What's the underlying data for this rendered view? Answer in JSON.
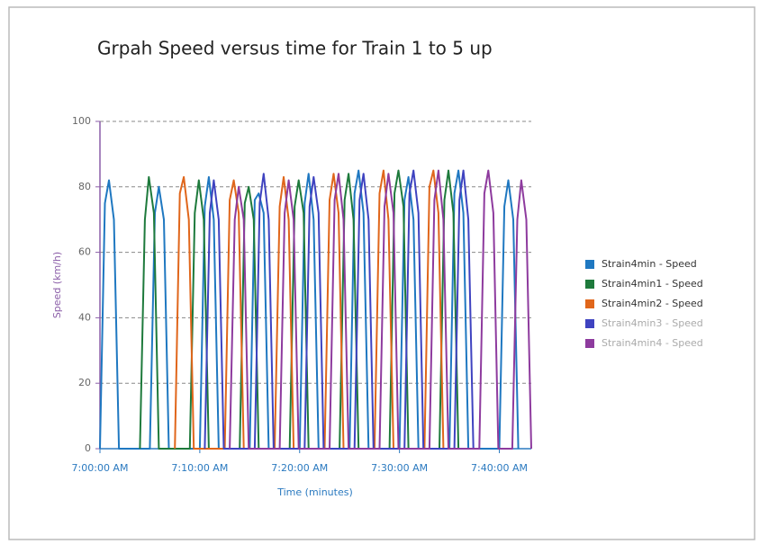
{
  "chart_data": {
    "type": "line",
    "title": "Grpah Speed versus time for Train 1 to 5 up",
    "x_label": "Time (minutes)",
    "y_label": "Speed (km/h)",
    "xlim": [
      0,
      43.2
    ],
    "xticks": [
      {
        "value": 0,
        "label": "7:00:00 AM"
      },
      {
        "value": 10,
        "label": "7:10:00 AM"
      },
      {
        "value": 20,
        "label": "7:20:00 AM"
      },
      {
        "value": 30,
        "label": "7:30:00 AM"
      },
      {
        "value": 40,
        "label": "7:40:00 AM"
      }
    ],
    "ylim": [
      0,
      100
    ],
    "yticks": [
      0,
      20,
      40,
      60,
      80,
      100
    ],
    "grid": true,
    "legend": "right",
    "series": [
      {
        "name": "Strain4min - Speed",
        "color": "#1f78c1",
        "x": [
          0,
          0.5,
          0.9,
          1.4,
          1.9,
          5,
          5.5,
          5.9,
          6.4,
          6.9,
          10,
          10.5,
          10.9,
          11.4,
          11.9,
          15,
          15.5,
          15.9,
          16.4,
          16.9,
          20,
          20.5,
          20.9,
          21.4,
          21.9,
          25,
          25.5,
          25.9,
          26.4,
          26.9,
          30,
          30.5,
          30.9,
          31.4,
          31.9,
          35,
          35.5,
          35.9,
          36.4,
          36.9,
          40,
          40.5,
          40.9,
          41.4,
          41.9
        ],
        "values": [
          0,
          75,
          82,
          70,
          0,
          0,
          72,
          80,
          70,
          0,
          0,
          74,
          83,
          70,
          0,
          0,
          76,
          78,
          72,
          0,
          0,
          75,
          84,
          70,
          0,
          0,
          78,
          85,
          72,
          0,
          0,
          76,
          83,
          70,
          0,
          0,
          78,
          85,
          72,
          0,
          0,
          74,
          82,
          70,
          0
        ]
      },
      {
        "name": "Strain4min1 - Speed",
        "color": "#1e7a3c",
        "x": [
          4,
          4.5,
          4.9,
          5.4,
          5.9,
          9,
          9.5,
          9.9,
          10.4,
          10.9,
          14,
          14.5,
          14.9,
          15.4,
          15.9,
          19,
          19.5,
          19.9,
          20.4,
          20.9,
          24,
          24.5,
          24.9,
          25.4,
          25.9,
          29,
          29.5,
          29.9,
          30.4,
          30.9,
          34,
          34.5,
          34.9,
          35.4,
          35.9
        ],
        "values": [
          0,
          70,
          83,
          72,
          0,
          0,
          72,
          82,
          70,
          0,
          0,
          75,
          80,
          70,
          0,
          0,
          74,
          82,
          72,
          0,
          0,
          76,
          84,
          70,
          0,
          0,
          78,
          85,
          74,
          0,
          0,
          76,
          85,
          72,
          0
        ]
      },
      {
        "name": "Strain4min2 - Speed",
        "color": "#e0661b",
        "x": [
          7.5,
          8,
          8.4,
          8.9,
          9.4,
          12.5,
          13,
          13.4,
          13.9,
          14.4,
          17.5,
          18,
          18.4,
          18.9,
          19.4,
          22.5,
          23,
          23.4,
          23.9,
          24.4,
          27.5,
          28,
          28.4,
          28.9,
          29.4,
          32.5,
          33,
          33.4,
          33.9,
          34.4
        ],
        "values": [
          0,
          78,
          83,
          70,
          0,
          0,
          76,
          82,
          72,
          0,
          0,
          74,
          83,
          70,
          0,
          0,
          76,
          84,
          72,
          0,
          0,
          78,
          85,
          70,
          0,
          0,
          80,
          85,
          72,
          0
        ]
      },
      {
        "name": "Strain4min3 - Speed",
        "color": "#3f43c0",
        "x": [
          10.5,
          11,
          11.4,
          11.9,
          12.4,
          15.5,
          16,
          16.4,
          16.9,
          17.4,
          20.5,
          21,
          21.4,
          21.9,
          22.4,
          25.5,
          26,
          26.4,
          26.9,
          27.4,
          30.5,
          31,
          31.4,
          31.9,
          32.4,
          35.5,
          36,
          36.4,
          36.9,
          37.4
        ],
        "values": [
          0,
          72,
          82,
          70,
          0,
          0,
          75,
          84,
          70,
          0,
          0,
          74,
          83,
          72,
          0,
          0,
          76,
          84,
          70,
          0,
          0,
          78,
          85,
          72,
          0,
          0,
          76,
          85,
          70,
          0
        ]
      },
      {
        "name": "Strain4min4 - Speed",
        "color": "#8e3b9e",
        "x": [
          13,
          13.5,
          13.9,
          14.4,
          14.9,
          18,
          18.5,
          18.9,
          19.4,
          19.9,
          23,
          23.5,
          23.9,
          24.4,
          24.9,
          28,
          28.5,
          28.9,
          29.4,
          29.9,
          33,
          33.5,
          33.9,
          34.4,
          34.9,
          38,
          38.5,
          38.9,
          39.4,
          39.9,
          41.3,
          41.8,
          42.2,
          42.7,
          43.2
        ],
        "values": [
          0,
          70,
          80,
          70,
          0,
          0,
          72,
          82,
          70,
          0,
          0,
          76,
          84,
          70,
          0,
          0,
          74,
          84,
          72,
          0,
          0,
          76,
          85,
          70,
          0,
          0,
          78,
          85,
          72,
          0,
          0,
          70,
          82,
          70,
          0
        ]
      }
    ]
  }
}
